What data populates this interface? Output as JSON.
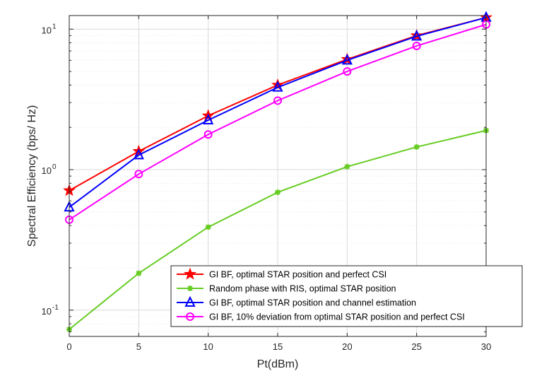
{
  "chart_data": {
    "type": "line",
    "xlabel": "Pt(dBm)",
    "ylabel": "Spectral Efficiency (bps/ Hz)",
    "y_scale": "log",
    "x_ticks": [
      "0",
      "5",
      "10",
      "15",
      "20",
      "25",
      "30"
    ],
    "y_tick_labels": [
      {
        "value": 0.1,
        "base": "10",
        "exp": "-1"
      },
      {
        "value": 1,
        "base": "10",
        "exp": "0"
      },
      {
        "value": 10,
        "base": "10",
        "exp": "1"
      }
    ],
    "grid": true,
    "minor_grid": true,
    "legend_position": "bottom-right",
    "x": [
      0,
      5,
      10,
      15,
      20,
      25,
      30
    ],
    "xlim": [
      0,
      30
    ],
    "ylim": [
      0.065,
      12.5
    ],
    "series": [
      {
        "name": "GI BF, optimal STAR position and perfect CSI",
        "color": "#ff0000",
        "marker": "star",
        "values": [
          0.71,
          1.35,
          2.42,
          4.0,
          6.1,
          9.0,
          12.1
        ]
      },
      {
        "name": "Random phase with RIS, optimal STAR position",
        "color": "#66cc22",
        "marker": "asterisk",
        "values": [
          0.073,
          0.183,
          0.39,
          0.69,
          1.05,
          1.45,
          1.9
        ]
      },
      {
        "name": "GI BF, optimal STAR position and channel estimation",
        "color": "#0000ff",
        "marker": "triangle",
        "values": [
          0.54,
          1.27,
          2.25,
          3.85,
          6.0,
          8.9,
          12.1
        ]
      },
      {
        "name": "GI BF, 10% deviation from optimal STAR position and perfect CSI",
        "color": "#ff00ff",
        "marker": "circle",
        "values": [
          0.44,
          0.93,
          1.78,
          3.1,
          5.0,
          7.6,
          10.8
        ]
      }
    ]
  }
}
